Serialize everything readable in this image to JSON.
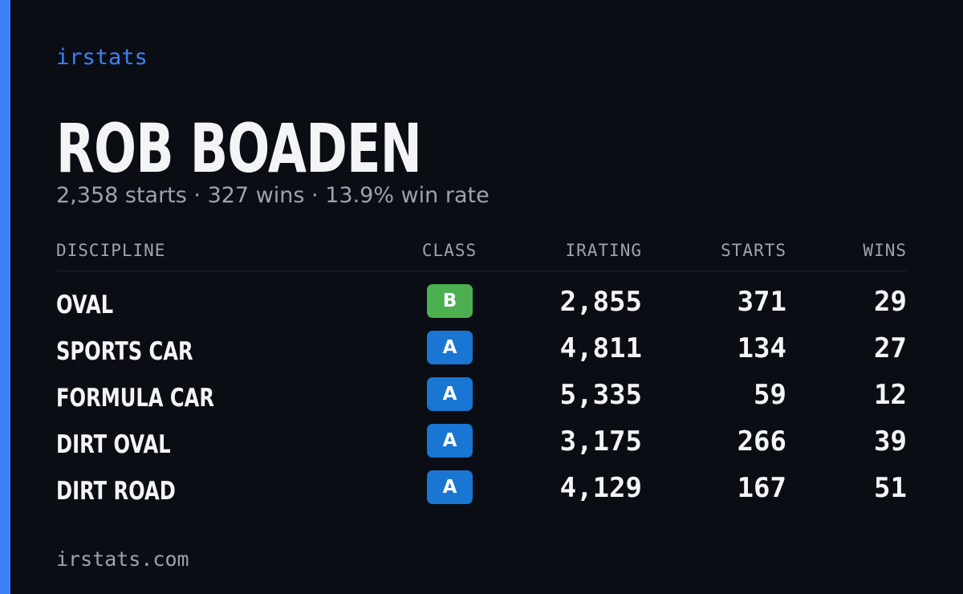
{
  "brand": "irstats",
  "name": "ROB BOADEN",
  "summary": "2,358 starts · 327 wins · 13.9% win rate",
  "table": {
    "headers": [
      "DISCIPLINE",
      "CLASS",
      "IRATING",
      "STARTS",
      "WINS"
    ],
    "rows": [
      {
        "discipline": "OVAL",
        "class": "B",
        "class_color": "#4caf50",
        "irating": "2,855",
        "starts": "371",
        "wins": "29"
      },
      {
        "discipline": "SPORTS CAR",
        "class": "A",
        "class_color": "#1976d2",
        "irating": "4,811",
        "starts": "134",
        "wins": "27"
      },
      {
        "discipline": "FORMULA CAR",
        "class": "A",
        "class_color": "#1976d2",
        "irating": "5,335",
        "starts": "59",
        "wins": "12"
      },
      {
        "discipline": "DIRT OVAL",
        "class": "A",
        "class_color": "#1976d2",
        "irating": "3,175",
        "starts": "266",
        "wins": "39"
      },
      {
        "discipline": "DIRT ROAD",
        "class": "A",
        "class_color": "#1976d2",
        "irating": "4,129",
        "starts": "167",
        "wins": "51"
      }
    ]
  },
  "footer": "irstats.com"
}
